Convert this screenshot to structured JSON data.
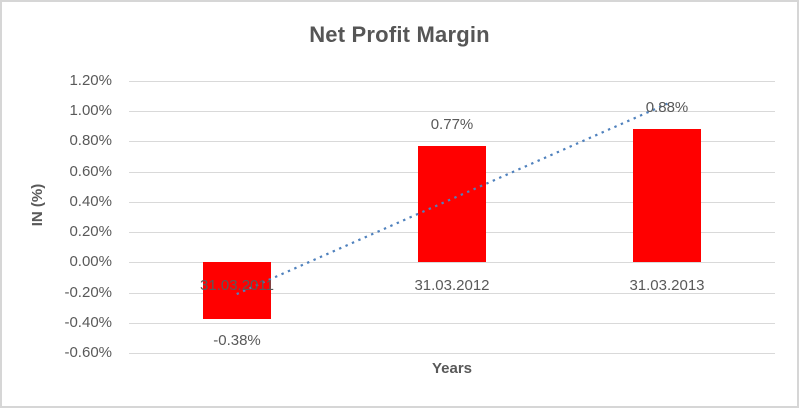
{
  "chart": {
    "title": "Net Profit Margin",
    "x_axis_title": "Years",
    "y_axis_title": "IN (%)"
  },
  "colors": {
    "bar": "#ff0000",
    "trendline": "#4f81bd",
    "text": "#595959",
    "gridline": "#d9d9d9",
    "border": "#d6d6d6",
    "background": "#ffffff"
  },
  "chart_data": {
    "type": "bar",
    "title": "Net Profit Margin",
    "xlabel": "Years",
    "ylabel": "IN (%)",
    "categories": [
      "31.03.2011",
      "31.03.2012",
      "31.03.2013"
    ],
    "series": [
      {
        "name": "Net Profit Margin",
        "values": [
          -0.38,
          0.77,
          0.88
        ]
      }
    ],
    "data_labels": [
      "-0.38%",
      "0.77%",
      "0.88%"
    ],
    "unit": "%",
    "y_tick_labels": [
      "1.20%",
      "1.00%",
      "0.80%",
      "0.60%",
      "0.40%",
      "0.20%",
      "0.00%",
      "-0.20%",
      "-0.40%",
      "-0.60%"
    ],
    "y_tick_values": [
      1.2,
      1.0,
      0.8,
      0.6,
      0.4,
      0.2,
      0.0,
      -0.2,
      -0.4,
      -0.6
    ],
    "ylim": [
      -0.6,
      1.2
    ],
    "grid": true,
    "legend": false,
    "trendline": {
      "type": "linear",
      "style": "dotted",
      "start_value": -0.21,
      "end_value": 1.05
    }
  }
}
